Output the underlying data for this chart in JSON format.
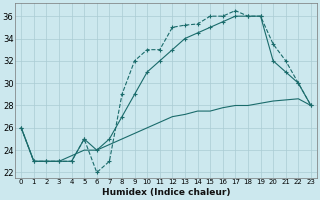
{
  "xlabel": "Humidex (Indice chaleur)",
  "background_color": "#cce8ee",
  "grid_color": "#aaccd4",
  "line_color": "#1a6b6b",
  "xlim": [
    -0.5,
    23.5
  ],
  "ylim": [
    21.5,
    37.2
  ],
  "xticks": [
    0,
    1,
    2,
    3,
    4,
    5,
    6,
    7,
    8,
    9,
    10,
    11,
    12,
    13,
    14,
    15,
    16,
    17,
    18,
    19,
    20,
    21,
    22,
    23
  ],
  "yticks": [
    22,
    24,
    26,
    28,
    30,
    32,
    34,
    36
  ],
  "line1_x": [
    0,
    1,
    2,
    3,
    4,
    5,
    6,
    7,
    8,
    9,
    10,
    11,
    12,
    13,
    14,
    15,
    16,
    17,
    18,
    19,
    20,
    21,
    22,
    23
  ],
  "line1_y": [
    26,
    23,
    23,
    23,
    23,
    25,
    22,
    23,
    29,
    32,
    33,
    33,
    35,
    35.2,
    35.3,
    36,
    36,
    36.5,
    36,
    36,
    33.5,
    32,
    30,
    28
  ],
  "line2_x": [
    0,
    1,
    2,
    3,
    4,
    5,
    6,
    7,
    8,
    9,
    10,
    11,
    12,
    13,
    14,
    15,
    16,
    17,
    18,
    19,
    20,
    21,
    22,
    23
  ],
  "line2_y": [
    26,
    23,
    23,
    23,
    23,
    25,
    24,
    25,
    27,
    29,
    31,
    32,
    33,
    34,
    34.5,
    35,
    35.5,
    36,
    36,
    36,
    32,
    31,
    30,
    28
  ],
  "line3_x": [
    0,
    1,
    2,
    3,
    4,
    5,
    6,
    7,
    8,
    9,
    10,
    11,
    12,
    13,
    14,
    15,
    16,
    17,
    18,
    19,
    20,
    21,
    22,
    23
  ],
  "line3_y": [
    26,
    23,
    23,
    23,
    23.5,
    24,
    24,
    24.5,
    25,
    25.5,
    26,
    26.5,
    27,
    27.2,
    27.5,
    27.5,
    27.8,
    28,
    28,
    28.2,
    28.4,
    28.5,
    28.6,
    28
  ],
  "figsize": [
    3.2,
    2.0
  ],
  "dpi": 100
}
